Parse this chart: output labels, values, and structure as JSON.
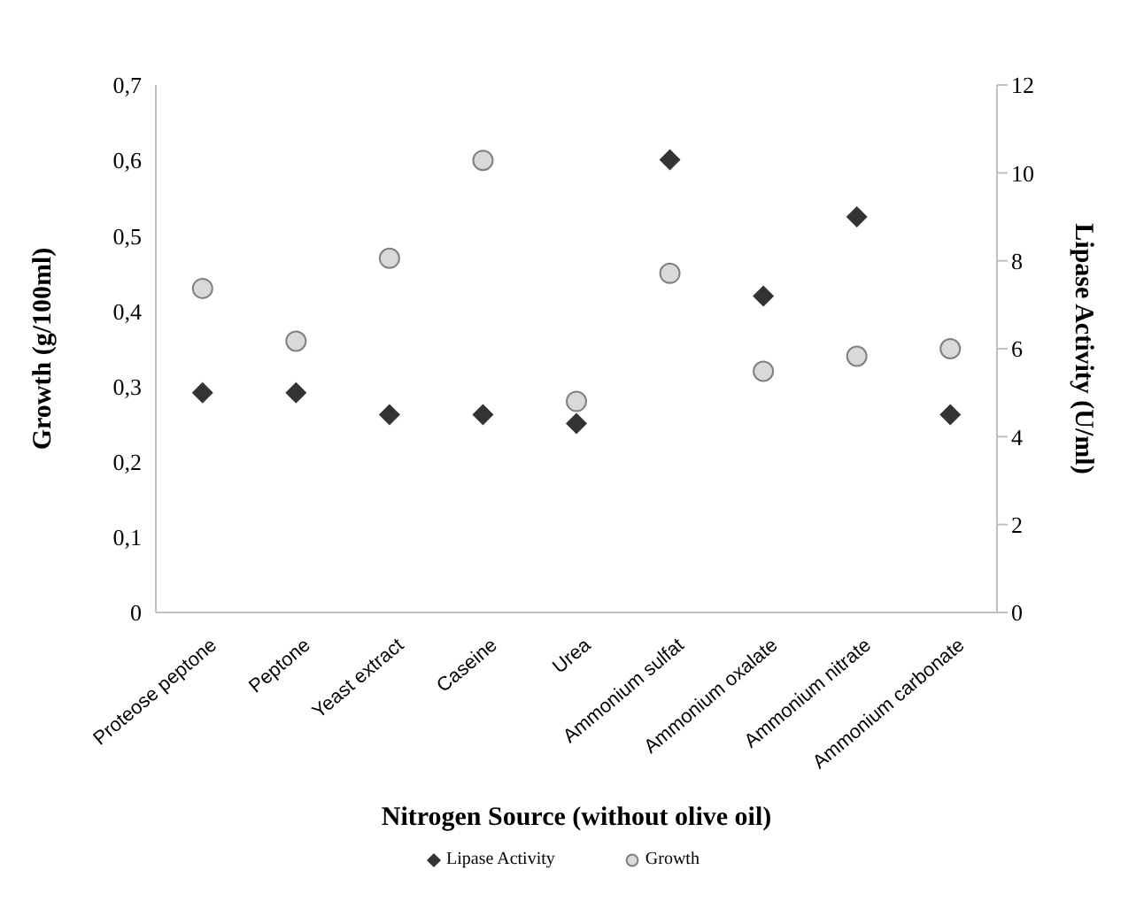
{
  "chart_data": {
    "type": "scatter",
    "xlabel": "Nitrogen Source (without olive oil)",
    "ylabel": "Growth (g/100ml)",
    "y2label": "Lipase Activity (U/ml)",
    "categories": [
      "Proteose peptone",
      "Peptone",
      "Yeast extract",
      "Caseine",
      "Urea",
      "Ammonium sulfat",
      "Ammonium oxalate",
      "Ammonium nitrate",
      "Ammonium carbonate"
    ],
    "series": [
      {
        "name": "Lipase Activity",
        "color": "#333333",
        "marker": "diamond",
        "axis": "y2",
        "values": [
          5.0,
          5.0,
          4.5,
          4.5,
          4.3,
          10.3,
          7.2,
          9.0,
          4.5
        ]
      },
      {
        "name": "Growth",
        "color": "#d9d9d9",
        "marker": "circle",
        "values": [
          0.43,
          0.36,
          0.47,
          0.6,
          0.28,
          0.45,
          0.32,
          0.34,
          0.35
        ]
      }
    ],
    "ylim": [
      0,
      0.7
    ],
    "yticks": [
      0,
      {
        "value": 0.1,
        "label": "0,1"
      },
      {
        "value": 0.2,
        "label": "0,2"
      },
      {
        "value": 0.3,
        "label": "0,3"
      },
      {
        "value": 0.4,
        "label": "0,4"
      },
      {
        "value": 0.5,
        "label": "0,5"
      },
      {
        "value": 0.6,
        "label": "0,6"
      },
      {
        "value": 0.7,
        "label": "0,7"
      }
    ],
    "y2lim": [
      0,
      12
    ],
    "y2ticks": [
      0,
      2,
      4,
      6,
      8,
      10,
      12
    ],
    "legend": "bottom"
  }
}
